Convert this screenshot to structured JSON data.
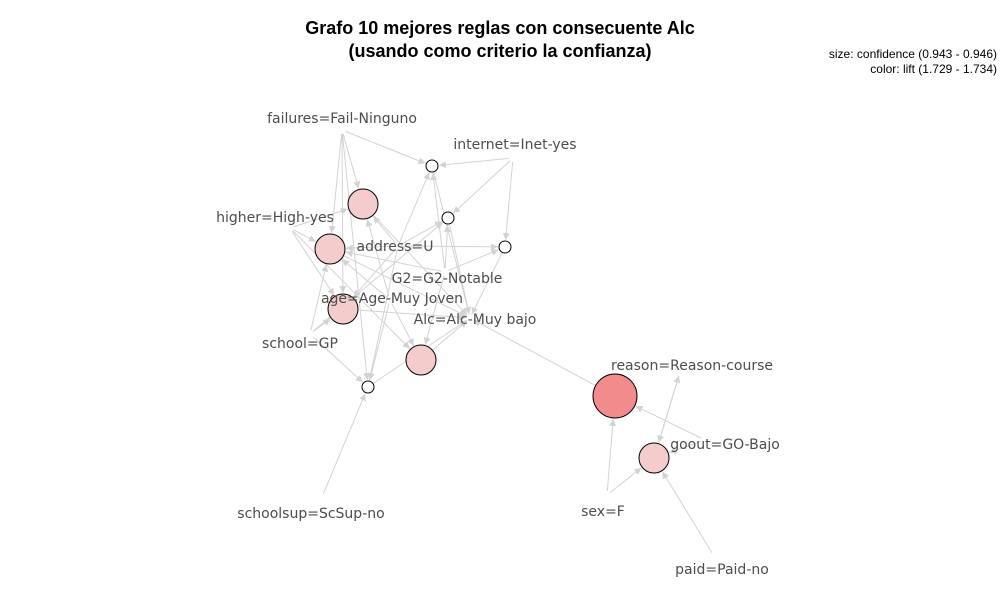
{
  "title": {
    "line1": "Grafo 10 mejores reglas con consecuente Alc",
    "line2": "(usando como criterio la confianza)"
  },
  "legend": {
    "size": "size: confidence (0.943 - 0.946)",
    "color": "color: lift (1.729 - 1.734)"
  },
  "colors": {
    "rule_light": "#f4cccc",
    "rule_strong": "#f28b8b",
    "rule_minimal": "#ffffff",
    "edge": "#d3d3d3",
    "label": "#4d4d4d"
  },
  "items": [
    {
      "id": "failures",
      "label": "failures=Fail-Ninguno"
    },
    {
      "id": "internet",
      "label": "internet=Inet-yes"
    },
    {
      "id": "higher",
      "label": "higher=High-yes"
    },
    {
      "id": "address",
      "label": "address=U"
    },
    {
      "id": "g2",
      "label": "G2=G2-Notable"
    },
    {
      "id": "age",
      "label": "age=Age-Muy Joven"
    },
    {
      "id": "alc",
      "label": "Alc=Alc-Muy bajo"
    },
    {
      "id": "school",
      "label": "school=GP"
    },
    {
      "id": "reason",
      "label": "reason=Reason-course"
    },
    {
      "id": "goout",
      "label": "goout=GO-Bajo"
    },
    {
      "id": "schoolsup",
      "label": "schoolsup=ScSup-no"
    },
    {
      "id": "sex",
      "label": "sex=F"
    },
    {
      "id": "paid",
      "label": "paid=Paid-no"
    }
  ],
  "rules": [
    {
      "id": "r1",
      "fill": "rule_minimal",
      "size_level": "small"
    },
    {
      "id": "r2",
      "fill": "rule_light",
      "size_level": "medium"
    },
    {
      "id": "r3",
      "fill": "rule_minimal",
      "size_level": "small"
    },
    {
      "id": "r4",
      "fill": "rule_light",
      "size_level": "medium"
    },
    {
      "id": "r5",
      "fill": "rule_minimal",
      "size_level": "small"
    },
    {
      "id": "r6",
      "fill": "rule_light",
      "size_level": "medium"
    },
    {
      "id": "r7",
      "fill": "rule_light",
      "size_level": "medium"
    },
    {
      "id": "r8",
      "fill": "rule_minimal",
      "size_level": "small"
    },
    {
      "id": "r9",
      "fill": "rule_strong",
      "size_level": "large"
    },
    {
      "id": "r10",
      "fill": "rule_light",
      "size_level": "medium"
    }
  ]
}
